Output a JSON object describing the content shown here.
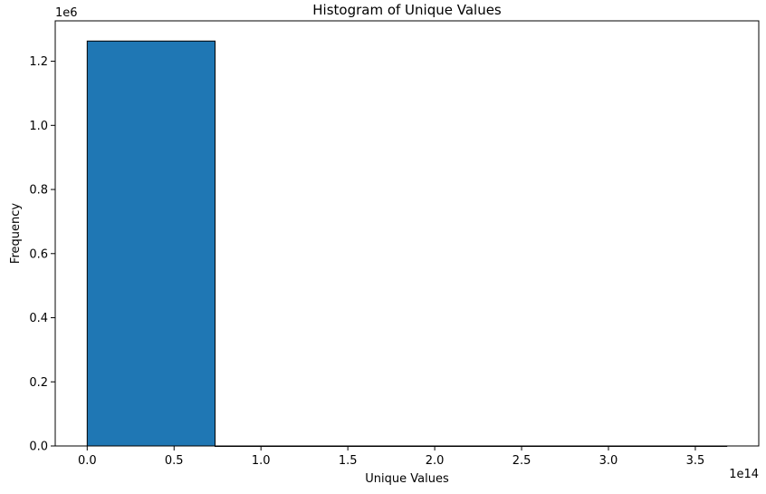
{
  "chart_data": {
    "type": "bar",
    "title": "Histogram of Unique Values",
    "xlabel": "Unique Values",
    "ylabel": "Frequency",
    "x_offset_label": "1e14",
    "y_offset_label": "1e6",
    "xlim": [
      -0.184,
      3.865
    ],
    "ylim": [
      0,
      1.326
    ],
    "xticks": [
      0.0,
      0.5,
      1.0,
      1.5,
      2.0,
      2.5,
      3.0,
      3.5
    ],
    "xtick_labels": [
      "0.0",
      "0.5",
      "1.0",
      "1.5",
      "2.0",
      "2.5",
      "3.0",
      "3.5"
    ],
    "yticks": [
      0.0,
      0.2,
      0.4,
      0.6,
      0.8,
      1.0,
      1.2
    ],
    "ytick_labels": [
      "0.0",
      "0.2",
      "0.4",
      "0.6",
      "0.8",
      "1.0",
      "1.2"
    ],
    "bins": [
      {
        "start": 0.0,
        "end": 0.736,
        "count": 1.263
      },
      {
        "start": 0.736,
        "end": 1.472,
        "count": 0.0
      },
      {
        "start": 1.472,
        "end": 2.209,
        "count": 0.0
      },
      {
        "start": 2.209,
        "end": 2.945,
        "count": 0.0
      },
      {
        "start": 2.945,
        "end": 3.681,
        "count": 0.0
      }
    ],
    "bar_color": "#1f77b4",
    "edge_color": "#000000",
    "grid": false
  }
}
